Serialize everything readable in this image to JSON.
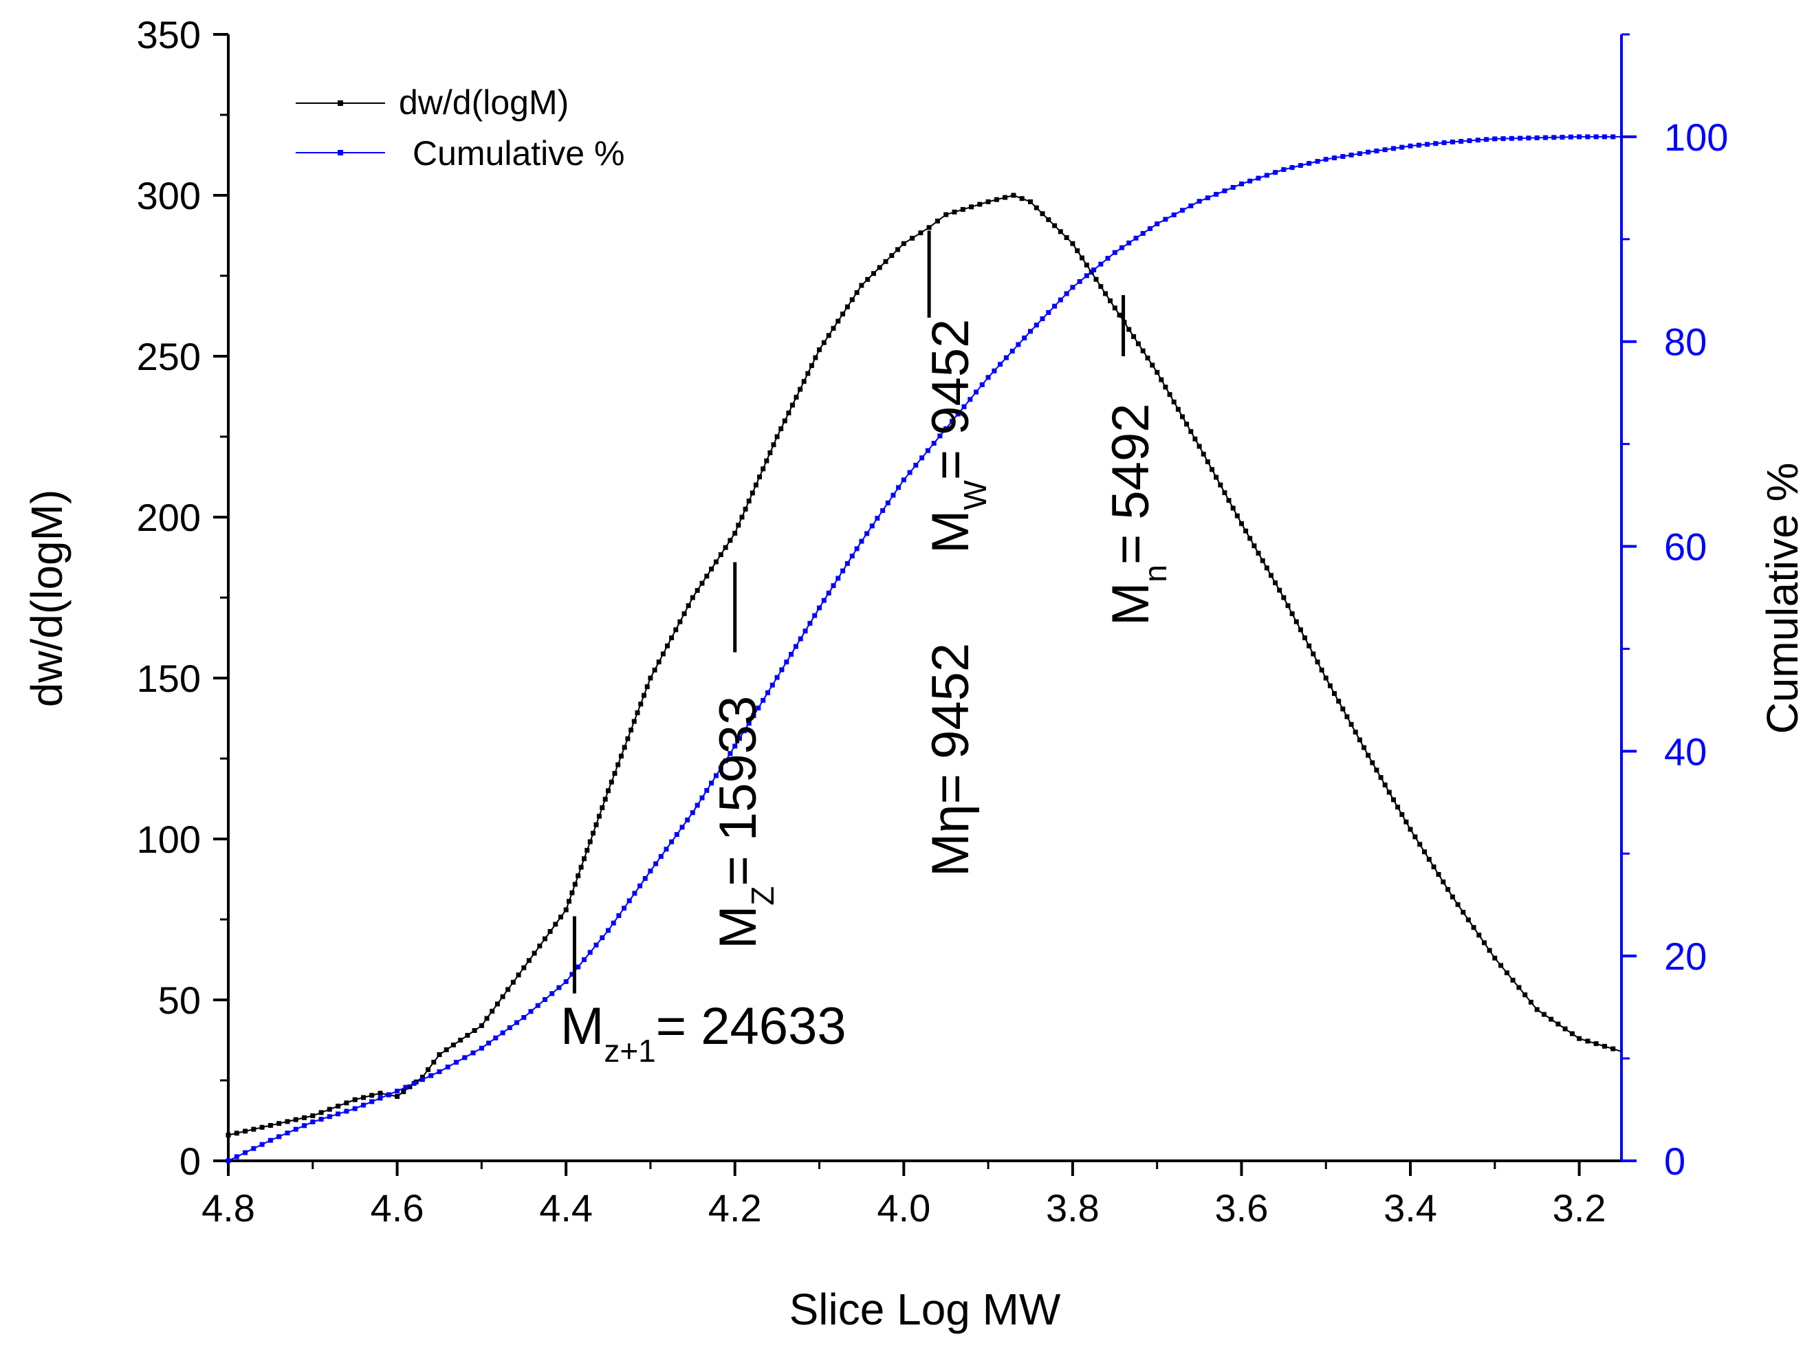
{
  "chart_data": {
    "type": "line",
    "title": "",
    "xlabel": "Slice Log MW",
    "ylabel": "dw/d(logM)",
    "y2label": "Cumulative %",
    "xlim": [
      4.8,
      3.15
    ],
    "x_reversed": true,
    "ylim": [
      0,
      350
    ],
    "y2lim": [
      0,
      110
    ],
    "x_ticks": [
      4.8,
      4.6,
      4.4,
      4.2,
      4.0,
      3.8,
      3.6,
      3.4,
      3.2
    ],
    "x_tick_labels": [
      "4.8",
      "4.6",
      "4.4",
      "4.2",
      "4.0",
      "3.8",
      "3.6",
      "3.4",
      "3.2"
    ],
    "y_ticks": [
      0,
      50,
      100,
      150,
      200,
      250,
      300,
      350
    ],
    "y_tick_labels": [
      "0",
      "50",
      "100",
      "150",
      "200",
      "250",
      "300",
      "350"
    ],
    "y2_ticks": [
      0,
      20,
      40,
      60,
      80,
      100
    ],
    "y2_tick_labels": [
      "0",
      "20",
      "40",
      "60",
      "80",
      "100"
    ],
    "legend": {
      "position": "top-left",
      "entries": [
        "dw/d(logM)",
        "Cumulative %"
      ]
    },
    "colors": {
      "series1": "#000000",
      "series2": "#0000ff",
      "axis_right": "#0000ff"
    },
    "series": [
      {
        "name": "dw/d(logM)",
        "axis": "left",
        "x": [
          4.8,
          4.75,
          4.7,
          4.65,
          4.62,
          4.6,
          4.57,
          4.55,
          4.5,
          4.45,
          4.4,
          4.35,
          4.3,
          4.25,
          4.2,
          4.15,
          4.1,
          4.05,
          4.0,
          3.97,
          3.95,
          3.9,
          3.87,
          3.85,
          3.8,
          3.75,
          3.7,
          3.65,
          3.6,
          3.55,
          3.5,
          3.45,
          3.4,
          3.35,
          3.3,
          3.25,
          3.2,
          3.15
        ],
        "values": [
          8,
          11,
          14,
          19,
          21,
          20,
          26,
          33,
          42,
          60,
          78,
          115,
          150,
          175,
          195,
          225,
          252,
          272,
          285,
          290,
          294,
          298,
          300,
          298,
          285,
          265,
          245,
          222,
          198,
          175,
          150,
          126,
          103,
          82,
          63,
          47,
          38,
          34
        ]
      },
      {
        "name": "Cumulative %",
        "axis": "right",
        "x": [
          4.8,
          4.75,
          4.7,
          4.65,
          4.6,
          4.55,
          4.5,
          4.45,
          4.4,
          4.35,
          4.3,
          4.25,
          4.2,
          4.15,
          4.1,
          4.05,
          4.0,
          3.95,
          3.9,
          3.85,
          3.8,
          3.75,
          3.7,
          3.65,
          3.6,
          3.55,
          3.5,
          3.45,
          3.4,
          3.35,
          3.3,
          3.25,
          3.2,
          3.15
        ],
        "values": [
          0,
          2,
          3.8,
          5.1,
          6.8,
          8.7,
          11,
          14,
          17.5,
          22.5,
          28.3,
          34,
          40.5,
          47.2,
          54,
          60.5,
          66.5,
          71.5,
          76.5,
          81,
          85.3,
          88.7,
          91.5,
          93.7,
          95.4,
          96.8,
          97.8,
          98.5,
          99.1,
          99.5,
          99.8,
          99.9,
          100,
          100
        ]
      }
    ],
    "annotations": [
      {
        "main": "M",
        "sub": "z+1",
        "rest": "= 24633",
        "x": 4.39,
        "orientation": "horizontal"
      },
      {
        "main": "M",
        "sub": "Z",
        "rest": "= 15933",
        "x": 4.2,
        "orientation": "vertical"
      },
      {
        "main": "Mη",
        "sub": "",
        "rest": "= 9452",
        "x": 3.97,
        "orientation": "vertical"
      },
      {
        "main": "M",
        "sub": "W",
        "rest": "= 9452",
        "x": 3.97,
        "orientation": "vertical"
      },
      {
        "main": "M",
        "sub": "n",
        "rest": "= 5492",
        "x": 3.74,
        "orientation": "vertical"
      }
    ]
  }
}
